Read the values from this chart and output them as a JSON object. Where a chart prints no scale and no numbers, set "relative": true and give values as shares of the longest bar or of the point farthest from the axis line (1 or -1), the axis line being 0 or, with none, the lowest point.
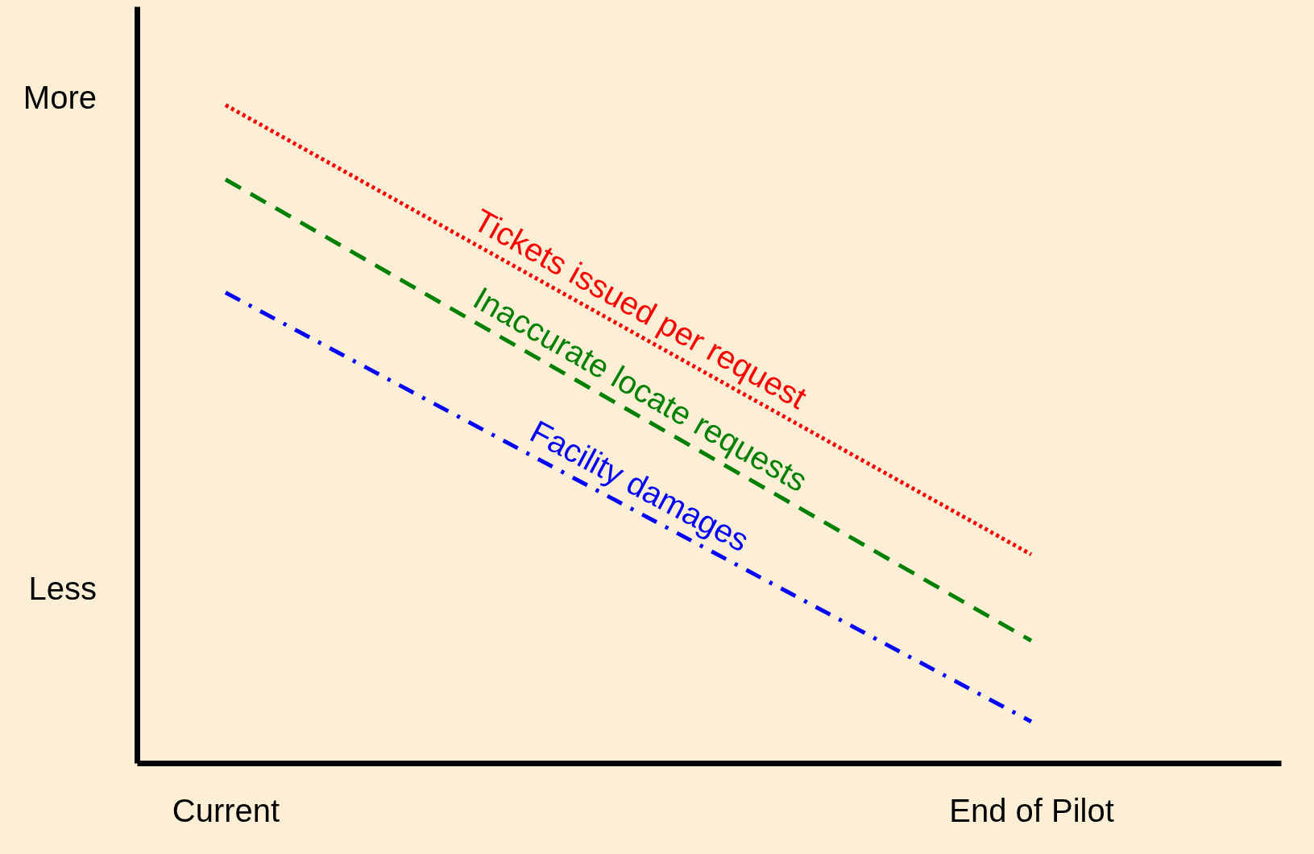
{
  "chart_data": {
    "type": "line",
    "relative": true,
    "categories": [
      "Current",
      "End of Pilot"
    ],
    "series": [
      {
        "name": "Tickets issued per request",
        "color": "#ff0000",
        "values": [
          1,
          0.317
        ],
        "line_style": "dotted"
      },
      {
        "name": "Inaccurate locate requests",
        "color": "#008000",
        "values": [
          0.887,
          0.186
        ],
        "line_style": "dashed"
      },
      {
        "name": "Facility damages",
        "color": "#0000ff",
        "values": [
          0.715,
          0.063
        ],
        "line_style": "dashdot"
      }
    ],
    "annotations": [
      "More",
      "Less"
    ],
    "grid": false
  }
}
